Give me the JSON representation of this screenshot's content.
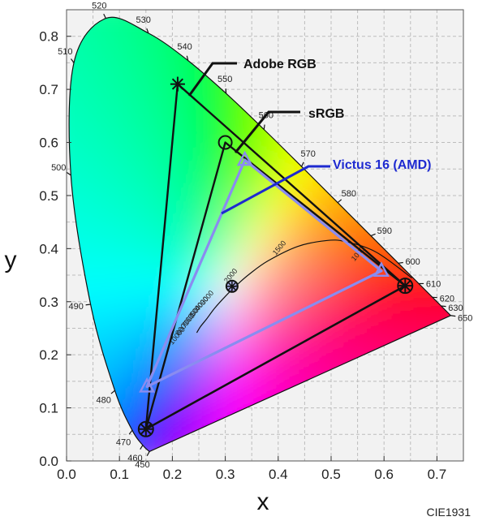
{
  "chart_data": {
    "type": "scatter",
    "title": "",
    "xlabel": "x",
    "ylabel": "y",
    "xlim": [
      0.0,
      0.75
    ],
    "ylim": [
      0.0,
      0.85
    ],
    "x_ticks": [
      "0.0",
      "0.1",
      "0.2",
      "0.3",
      "0.4",
      "0.5",
      "0.6",
      "0.7"
    ],
    "y_ticks": [
      "0.0",
      "0.1",
      "0.2",
      "0.3",
      "0.4",
      "0.5",
      "0.6",
      "0.7",
      "0.8"
    ],
    "grid": true,
    "footer": "CIE1931",
    "spectral_locus": [
      {
        "label": "450",
        "x": 0.1566,
        "y": 0.0177
      },
      {
        "label": "460",
        "x": 0.144,
        "y": 0.0297
      },
      {
        "label": "470",
        "x": 0.1241,
        "y": 0.0578
      },
      {
        "label": "480",
        "x": 0.0913,
        "y": 0.1327
      },
      {
        "label": "490",
        "x": 0.0454,
        "y": 0.295
      },
      {
        "label": "500",
        "x": 0.0082,
        "y": 0.5384
      },
      {
        "label": "510",
        "x": 0.0139,
        "y": 0.7502
      },
      {
        "label": "520",
        "x": 0.0743,
        "y": 0.8338
      },
      {
        "label": "530",
        "x": 0.1547,
        "y": 0.8059
      },
      {
        "label": "540",
        "x": 0.2296,
        "y": 0.7543
      },
      {
        "label": "550",
        "x": 0.3016,
        "y": 0.6923
      },
      {
        "label": "560",
        "x": 0.3731,
        "y": 0.6245
      },
      {
        "label": "570",
        "x": 0.4441,
        "y": 0.5547
      },
      {
        "label": "580",
        "x": 0.5125,
        "y": 0.4866
      },
      {
        "label": "590",
        "x": 0.5752,
        "y": 0.4242
      },
      {
        "label": "600",
        "x": 0.627,
        "y": 0.3725
      },
      {
        "label": "610",
        "x": 0.6658,
        "y": 0.334
      },
      {
        "label": "620",
        "x": 0.6915,
        "y": 0.3083
      },
      {
        "label": "630",
        "x": 0.7079,
        "y": 0.292
      },
      {
        "label": "650",
        "x": 0.726,
        "y": 0.274
      }
    ],
    "series": [
      {
        "name": "Adobe RGB",
        "color": "#000000",
        "points": [
          [
            0.64,
            0.33
          ],
          [
            0.21,
            0.71
          ],
          [
            0.15,
            0.06
          ]
        ]
      },
      {
        "name": "sRGB",
        "color": "#000000",
        "points": [
          [
            0.64,
            0.33
          ],
          [
            0.3,
            0.6
          ],
          [
            0.15,
            0.06
          ]
        ]
      },
      {
        "name": "Victus 16 (AMD)",
        "color": "#8a8cf0",
        "points": [
          [
            0.595,
            0.358
          ],
          [
            0.337,
            0.567
          ],
          [
            0.152,
            0.14
          ]
        ]
      }
    ],
    "white_point": {
      "x": 0.3127,
      "y": 0.329
    },
    "planckian_labels": [
      "10000",
      "8000",
      "7000",
      "6000",
      "5000",
      "4000",
      "3000",
      "2000",
      "1500",
      "1000"
    ],
    "planckian_curve": [
      [
        0.2461,
        0.2415
      ],
      [
        0.2532,
        0.2532
      ],
      [
        0.2646,
        0.2673
      ],
      [
        0.2801,
        0.288
      ],
      [
        0.3003,
        0.3103
      ],
      [
        0.3221,
        0.3318
      ],
      [
        0.3451,
        0.3516
      ],
      [
        0.3805,
        0.3768
      ],
      [
        0.4369,
        0.4041
      ],
      [
        0.4897,
        0.415
      ],
      [
        0.5267,
        0.4133
      ],
      [
        0.5856,
        0.3931
      ],
      [
        0.6526,
        0.3446
      ]
    ]
  },
  "callouts": {
    "adobe": "Adobe RGB",
    "srgb": "sRGB",
    "victus": "Victus 16 (AMD)"
  },
  "colors": {
    "victus_text": "#1e2ad0",
    "victus_line": "#1e2ad0",
    "victus_triangle": "#8a8cf0",
    "plot_bg": "#f2f2f2",
    "grid": "#bdbdbd"
  }
}
